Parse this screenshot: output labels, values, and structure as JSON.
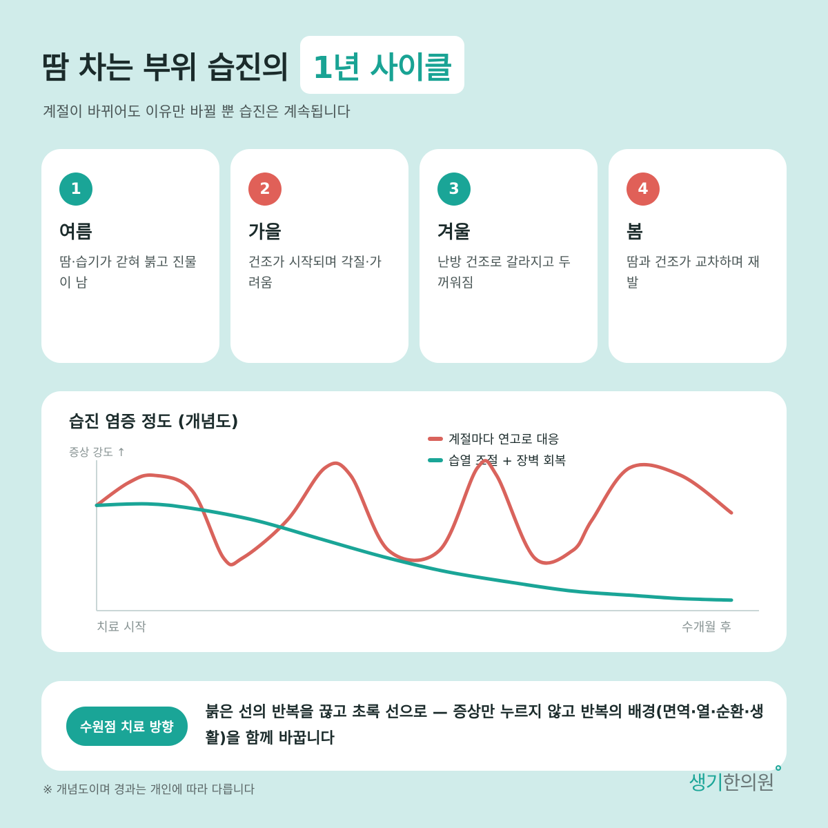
{
  "header": {
    "title_main": "땀 차는 부위 습진의",
    "title_highlight": "1년 사이클",
    "subtitle": "계절이 바뀌어도 이유만 바뀔 뿐 습진은 계속됩니다"
  },
  "cards": [
    {
      "number": "1",
      "season": "여름",
      "desc": "땀·습기가 갇혀 붉고 진물이 남",
      "color": "#1aa597"
    },
    {
      "number": "2",
      "season": "가을",
      "desc": "건조가 시작되며 각질·가려움",
      "color": "#e06058"
    },
    {
      "number": "3",
      "season": "겨울",
      "desc": "난방 건조로 갈라지고 두꺼워짐",
      "color": "#1aa597"
    },
    {
      "number": "4",
      "season": "봄",
      "desc": "땀과 건조가 교차하며 재발",
      "color": "#e06058"
    }
  ],
  "chart_data": {
    "type": "line",
    "title": "습진 염증 정도 (개념도)",
    "ylabel": "증상 강도 ↑",
    "x_start_label": "치료 시작",
    "x_end_label": "수개월 후",
    "legend_position": "top-right",
    "grid": false,
    "xlim": [
      0,
      100
    ],
    "ylim": [
      0,
      100
    ],
    "series": [
      {
        "name": "계절마다 연고로 대응",
        "color": "#d9635c",
        "x": [
          0,
          5,
          9,
          15,
          20,
          23,
          30,
          36,
          40,
          46,
          54,
          60,
          63,
          69,
          75,
          78,
          84,
          92,
          100
        ],
        "y": [
          70,
          85,
          90,
          80,
          35,
          35,
          60,
          95,
          90,
          40,
          40,
          95,
          90,
          35,
          40,
          60,
          95,
          90,
          65
        ]
      },
      {
        "name": "습열 조절 + 장벽 회복",
        "color": "#1aa597",
        "x": [
          0,
          8,
          15,
          25,
          35,
          45,
          55,
          65,
          75,
          85,
          92,
          100
        ],
        "y": [
          70,
          71,
          68,
          60,
          48,
          36,
          26,
          19,
          13,
          10,
          8,
          7
        ]
      }
    ]
  },
  "bottom": {
    "pill_label": "수원점 치료 방향",
    "text": "붉은 선의 반복을 끊고 초록 선으로 — 증상만 누르지 않고 반복의 배경(면역·열·순환·생활)을 함께 바꿉니다"
  },
  "footnote": "※ 개념도이며 경과는 개인에 따라 다릅니다",
  "logo": {
    "part_a": "생기",
    "part_b": "한의원"
  }
}
